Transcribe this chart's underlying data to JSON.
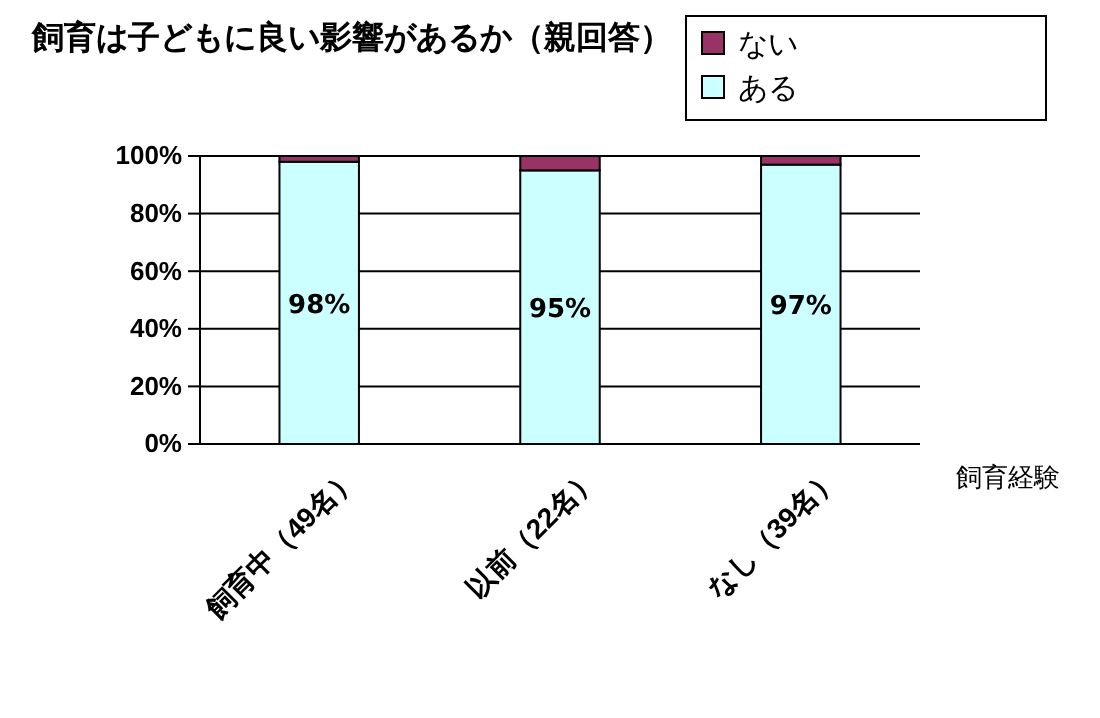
{
  "chart_data": {
    "type": "bar",
    "title": "飼育は子どもに良い影響があるか（親回答）",
    "xlabel": "飼育経験",
    "categories": [
      "飼育中（49名）",
      "以前（22名）",
      "なし（39名）"
    ],
    "stacked": true,
    "ylim": [
      0,
      100
    ],
    "yticks": [
      {
        "value": 0,
        "label": "0%"
      },
      {
        "value": 20,
        "label": "20%"
      },
      {
        "value": 40,
        "label": "40%"
      },
      {
        "value": 60,
        "label": "60%"
      },
      {
        "value": 80,
        "label": "80%"
      },
      {
        "value": 100,
        "label": "100%"
      }
    ],
    "grid": "y",
    "legend": "top right",
    "series": [
      {
        "name": "ある",
        "color": "#ccffff",
        "values": [
          98,
          95,
          97
        ],
        "value_labels": [
          "98%",
          "95%",
          "97%"
        ]
      },
      {
        "name": "ない",
        "color": "#993366",
        "values": [
          2,
          5,
          3
        ]
      }
    ]
  }
}
